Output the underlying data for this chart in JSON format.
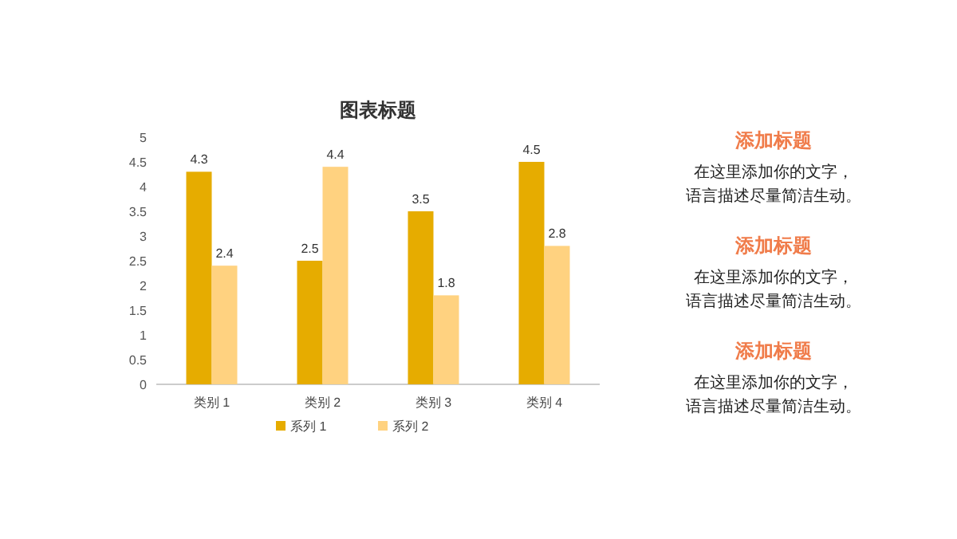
{
  "chart_data": [
    {
      "type": "bar",
      "title": "图表标题",
      "categories": [
        "类别 1",
        "类别 2",
        "类别 3",
        "类别 4"
      ],
      "series": [
        {
          "name": "系列 1",
          "color": "#e6ac00",
          "values": [
            4.3,
            2.5,
            3.5,
            4.5
          ]
        },
        {
          "name": "系列 2",
          "color": "#ffd280",
          "values": [
            2.4,
            4.4,
            1.8,
            2.8
          ]
        }
      ],
      "ylim": [
        0,
        5
      ],
      "yticks": [
        0,
        0.5,
        1,
        1.5,
        2,
        2.5,
        3,
        3.5,
        4,
        4.5,
        5
      ],
      "grid": false,
      "legend": "bottom",
      "data_labels": true
    },
    {
      "type": "other",
      "color": "#f07c4a",
      "annotations": [
        "添加标题",
        "在这里添加你的文字，",
        "语言描述尽量简洁生动。",
        "添加标题",
        "在这里添加你的文字，",
        "语言描述尽量简洁生动。",
        "添加标题",
        "在这里添加你的文字，",
        "语言描述尽量简洁生动。"
      ]
    }
  ]
}
